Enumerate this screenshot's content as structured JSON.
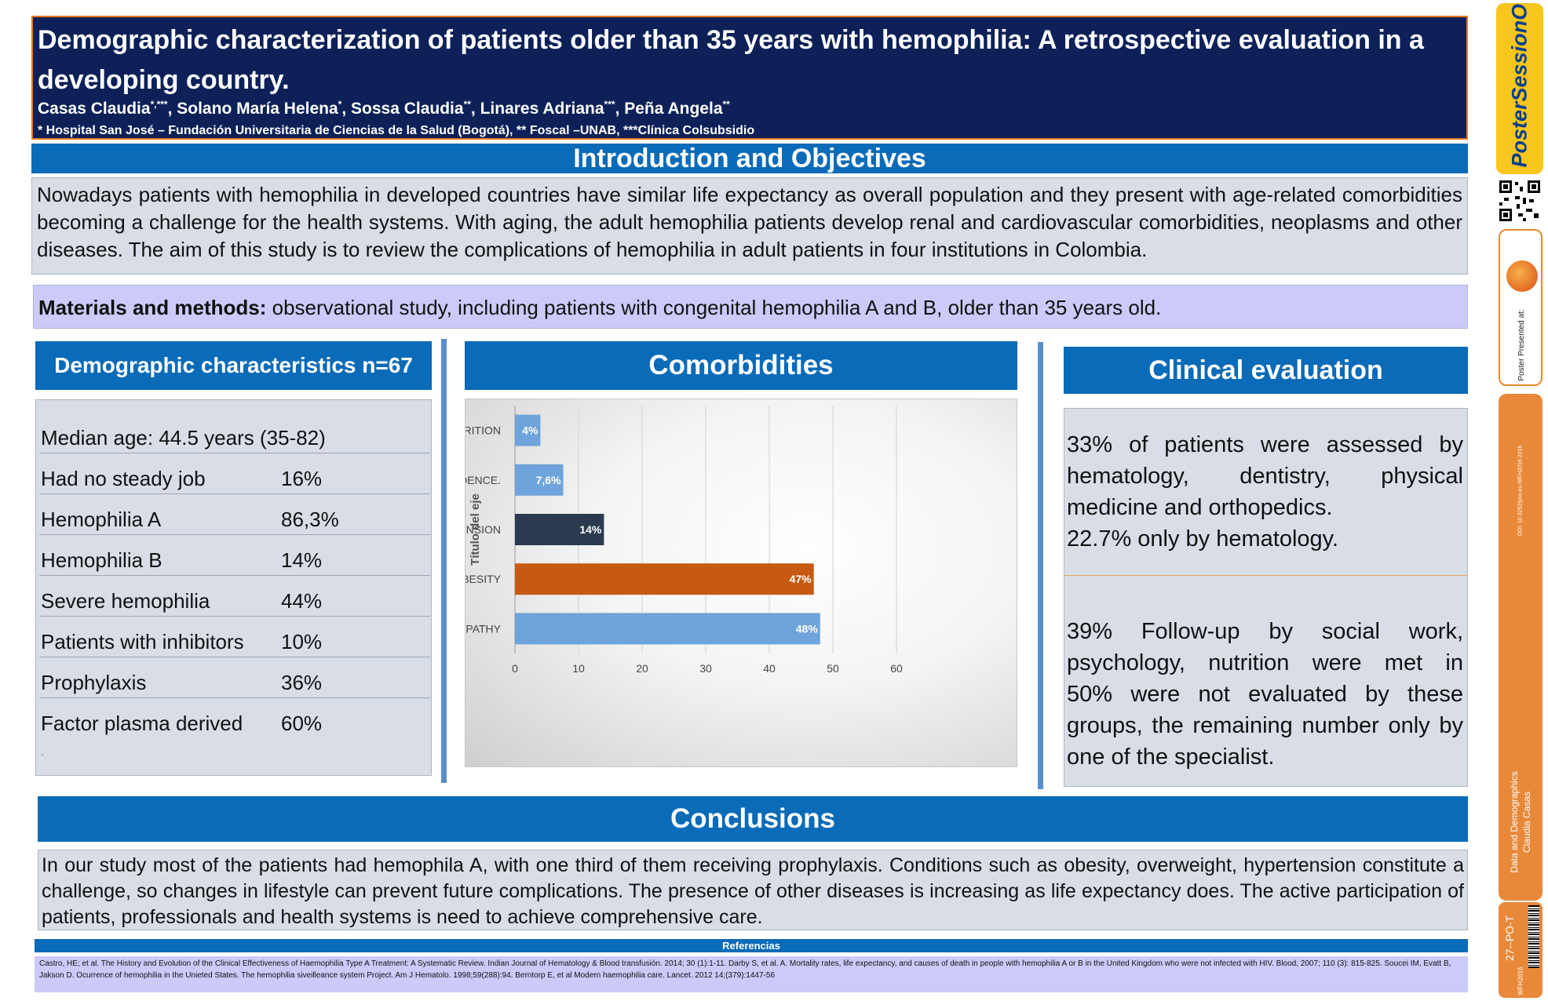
{
  "header": {
    "title": "Demographic characterization of patients older than 35 years with hemophilia: A retrospective evaluation in a developing country.",
    "authors": [
      {
        "name": "Casas Claudia",
        "sup": "*,***",
        "sep": ", "
      },
      {
        "name": "Solano María Helena",
        "sup": "*",
        "sep": ", "
      },
      {
        "name": "Sossa Claudia",
        "sup": "**",
        "sep": ", "
      },
      {
        "name": "Linares Adriana",
        "sup": "***",
        "sep": ", "
      },
      {
        "name": "Peña Angela",
        "sup": "**",
        "sep": ""
      }
    ],
    "affiliations": "* Hospital San José – Fundación Universitaria de Ciencias de la Salud (Bogotá), ** Foscal –UNAB, ***Clínica Colsubsidio"
  },
  "intro": {
    "heading": "Introduction and Objectives",
    "text": "Nowadays patients with hemophilia in developed countries have similar life expectancy as overall population and they present with  age-related comorbidities becoming a challenge for the health systems. With aging, the adult hemophilia patients develop renal and cardiovascular comorbidities, neoplasms and other diseases. The aim of this study is to review the complications of hemophilia in adult patients in four institutions in Colombia."
  },
  "methods": {
    "label": "Materials and methods:",
    "text": " observational study, including patients with congenital hemophilia A and B, older than 35 years old."
  },
  "demographics": {
    "heading": "Demographic characteristics n=67",
    "rows": [
      {
        "label": "Median age: 44.5 years (35-82)",
        "value": ""
      },
      {
        "label": "Had no steady job",
        "value": "16%"
      },
      {
        "label": "Hemophilia A",
        "value": "86,3%"
      },
      {
        "label": "Hemophilia B",
        "value": "14%"
      },
      {
        "label": "Severe hemophilia",
        "value": "44%"
      },
      {
        "label": "Patients with inhibitors",
        "value": "10%"
      },
      {
        "label": "Prophylaxis",
        "value": "36%"
      },
      {
        "label": "Factor plasma derived",
        "value": "60%"
      }
    ],
    "trailing_mark": "."
  },
  "comorbidities": {
    "heading": "Comorbidities"
  },
  "chart_data": {
    "type": "bar",
    "orientation": "horizontal",
    "ylabel": "Título del eje",
    "xlabel": "",
    "xlim": [
      0,
      60
    ],
    "xticks": [
      0,
      10,
      20,
      30,
      40,
      50,
      60
    ],
    "categories": [
      "MALNUTRITION",
      "OPIOID DEPENDENCE.",
      "HYPERTENSION",
      "OBESITY",
      "MULTIPLE ARTHROPATHY"
    ],
    "values": [
      4,
      7.6,
      14,
      47,
      48
    ],
    "data_labels": [
      "4%",
      "7,6%",
      "14%",
      "47%",
      "48%"
    ],
    "colors": [
      "#6fa3db",
      "#6fa3db",
      "#2b3a4f",
      "#c65a12",
      "#6fa3db"
    ],
    "grid": "vertical gridlines"
  },
  "clinical": {
    "heading": "Clinical evaluation",
    "block1": "33% of patients were assessed by hematology, dentistry, physical medicine and orthopedics.",
    "block1b": "22.7% only by hematology.",
    "block2": "39% Follow-up by social work, psychology, nutrition were met in",
    "block2b": "50% were not evaluated by these groups, the remaining number only by one of the specialist."
  },
  "conclusions": {
    "heading": "Conclusions",
    "text": "In our study most of the patients had hemophila A, with one third of them receiving prophylaxis. Conditions such as obesity, overweight, hypertension constitute a challenge, so changes in lifestyle can prevent future complications. The presence of other diseases is increasing as life expectancy does. The active participation of patients, professionals and health systems is need to achieve comprehensive care."
  },
  "references": {
    "heading": "Referencias",
    "text": "Castro, HE; et al. The History and Evolution of the Clinical Effectiveness of Haemophilia Type A Treatment: A Systematic Review. Indian Journal of Hematology & Blood transfusión. 2014; 30 (1):1-11.  Darby S, et al. A. Mortality rates, life expectancy, and causes of death in people with hemophilia A or B in the United Kingdom who were not infected with HIV. Blood, 2007; 110 (3): 815-825. Soucei IM, Evatt B, Jakson D.  Ocurrence of hemophilia in the Unieted States.  The hemophilia siveilleance system Project.  Am J Hematolo. 1998;59(288):94. Berntorp E, et al  Modern haemophilia care.  Lancet. 2012 14;(379):1447-56"
  },
  "sidebar": {
    "logo_text": "PosterSessionOnline.com",
    "presented_text": "Poster Presented at:",
    "doi_text": "DOI: 10.3252/pso.eu.WFH2016.2016",
    "category": "Data and Demographics",
    "author": "Claudia Casas",
    "poster_code": "27--PO-T",
    "event_code": "WFH2016"
  }
}
